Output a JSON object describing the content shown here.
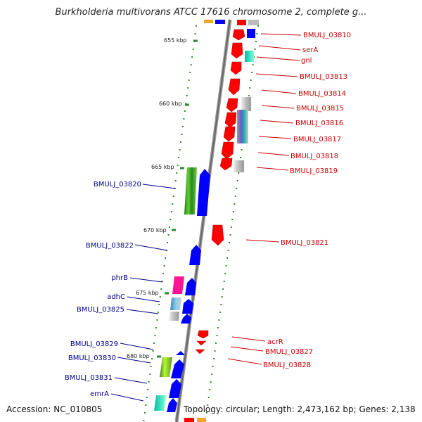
{
  "title": "Burkholderia multivorans ATCC 17616 chromosome 2, complete g...",
  "accession": "Accession: NC_010805",
  "topology": "Topology: circular; Length: 2,473,162 bp; Genes: 2,138",
  "ticks": [
    "655 kbp",
    "660 kbp",
    "665 kbp",
    "670 kbp",
    "675 kbp",
    "680 kbp"
  ],
  "genes_right": [
    "BMULJ_03810",
    "serA",
    "gnl",
    "BMULJ_03813",
    "BMULJ_03814",
    "BMULJ_03815",
    "BMULJ_03816",
    "BMULJ_03817",
    "BMULJ_03818",
    "BMULJ_03819",
    "BMULJ_03821",
    "acrR",
    "BMULJ_03827",
    "BMULJ_03828"
  ],
  "genes_left": [
    "BMULJ_03820",
    "BMULJ_03822",
    "phrB",
    "adhC",
    "BMULJ_03825",
    "BMULJ_03829",
    "BMULJ_03830",
    "BMULJ_03831",
    "emrA"
  ],
  "colors": {
    "forward": "#0000ff",
    "reverse": "#ff0000",
    "forward_label": "#00008b",
    "reverse_label": "#cc0000",
    "axis": "#888888",
    "dots": "#2e8b2e"
  }
}
